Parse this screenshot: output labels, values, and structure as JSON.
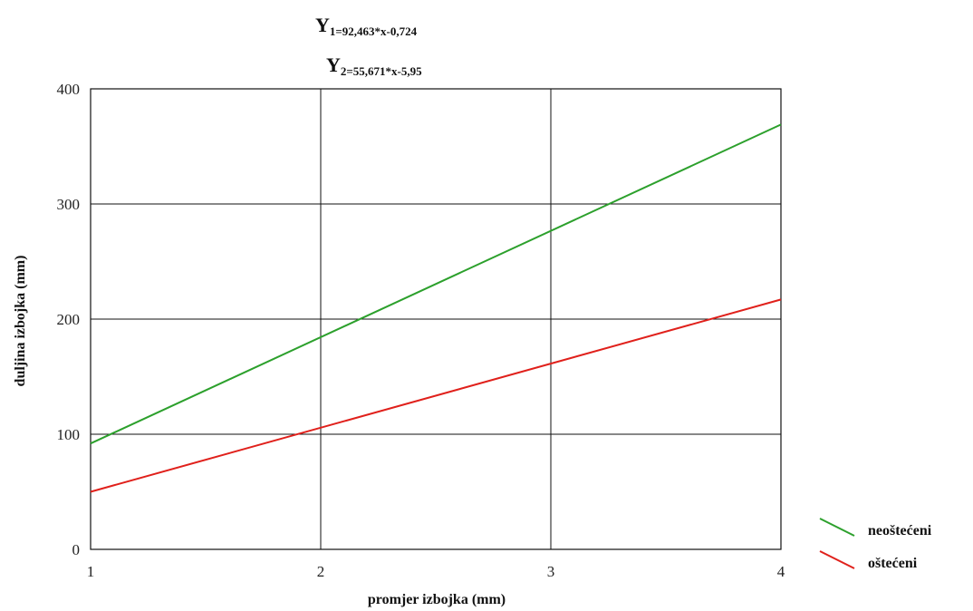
{
  "chart_data": {
    "type": "line",
    "equations": [
      {
        "main": "Y",
        "sub": "1=92,463*x-0,724"
      },
      {
        "main": "Y",
        "sub": "2=55,671*x-5,95"
      }
    ],
    "xlabel": "promjer izbojka (mm)",
    "ylabel": "duljina izbojka (mm)",
    "xlim": [
      1,
      4
    ],
    "ylim": [
      0,
      400
    ],
    "x_ticks": [
      "1",
      "2",
      "3",
      "4"
    ],
    "y_ticks": [
      "0",
      "100",
      "200",
      "300",
      "400"
    ],
    "grid": true,
    "legend_position": "bottom-right",
    "series": [
      {
        "name": "neoštećeni",
        "color": "#2ca02c",
        "x": [
          1,
          4
        ],
        "y": [
          92,
          369
        ]
      },
      {
        "name": "oštećeni",
        "color": "#e0201b",
        "x": [
          1,
          4
        ],
        "y": [
          50,
          217
        ]
      }
    ]
  }
}
